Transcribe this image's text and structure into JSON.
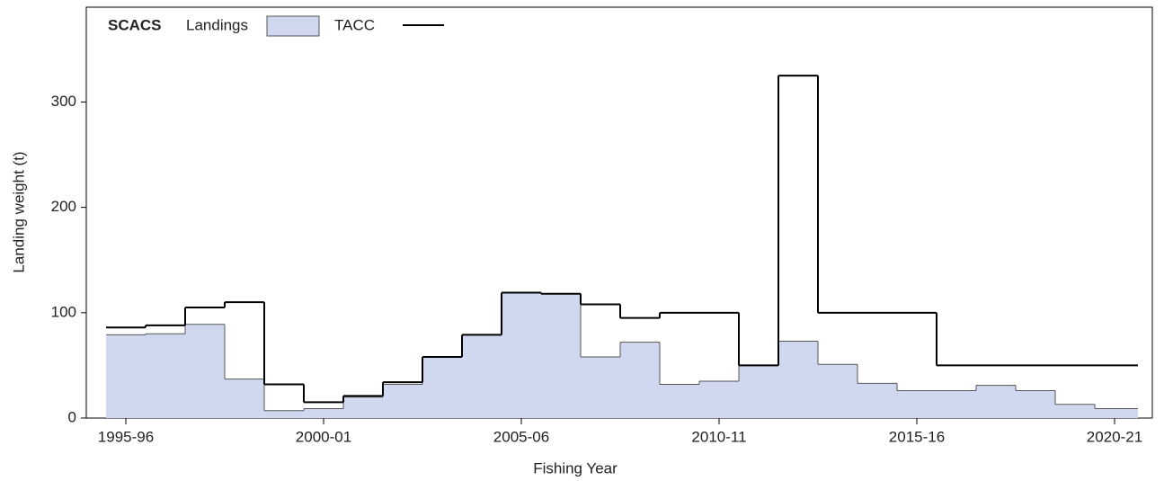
{
  "chart_data": {
    "type": "step",
    "title": "SCACS",
    "x_label": "Fishing Year",
    "y_label": "Landing weight (t)",
    "categories": [
      "1995-96",
      null,
      null,
      null,
      null,
      "2000-01",
      null,
      null,
      null,
      null,
      "2005-06",
      null,
      null,
      null,
      null,
      "2010-11",
      null,
      null,
      null,
      null,
      "2015-16",
      null,
      null,
      null,
      null,
      "2020-21"
    ],
    "series": [
      {
        "name": "Landings",
        "color": "#cfd8ef",
        "values": [
          79,
          80,
          89,
          37,
          7,
          9,
          20,
          32,
          58,
          79,
          119,
          118,
          58,
          72,
          32,
          35,
          50,
          73,
          51,
          33,
          26,
          26,
          31,
          26,
          13,
          9
        ]
      },
      {
        "name": "TACC",
        "color": "#000000",
        "values": [
          86,
          88,
          105,
          110,
          32,
          15,
          21,
          34,
          58,
          79,
          119,
          118,
          108,
          95,
          100,
          100,
          50,
          325,
          100,
          100,
          100,
          50,
          50,
          50,
          50,
          50
        ]
      }
    ],
    "ylim": [
      0,
      390
    ],
    "yticks": [
      0,
      100,
      200,
      300
    ]
  }
}
